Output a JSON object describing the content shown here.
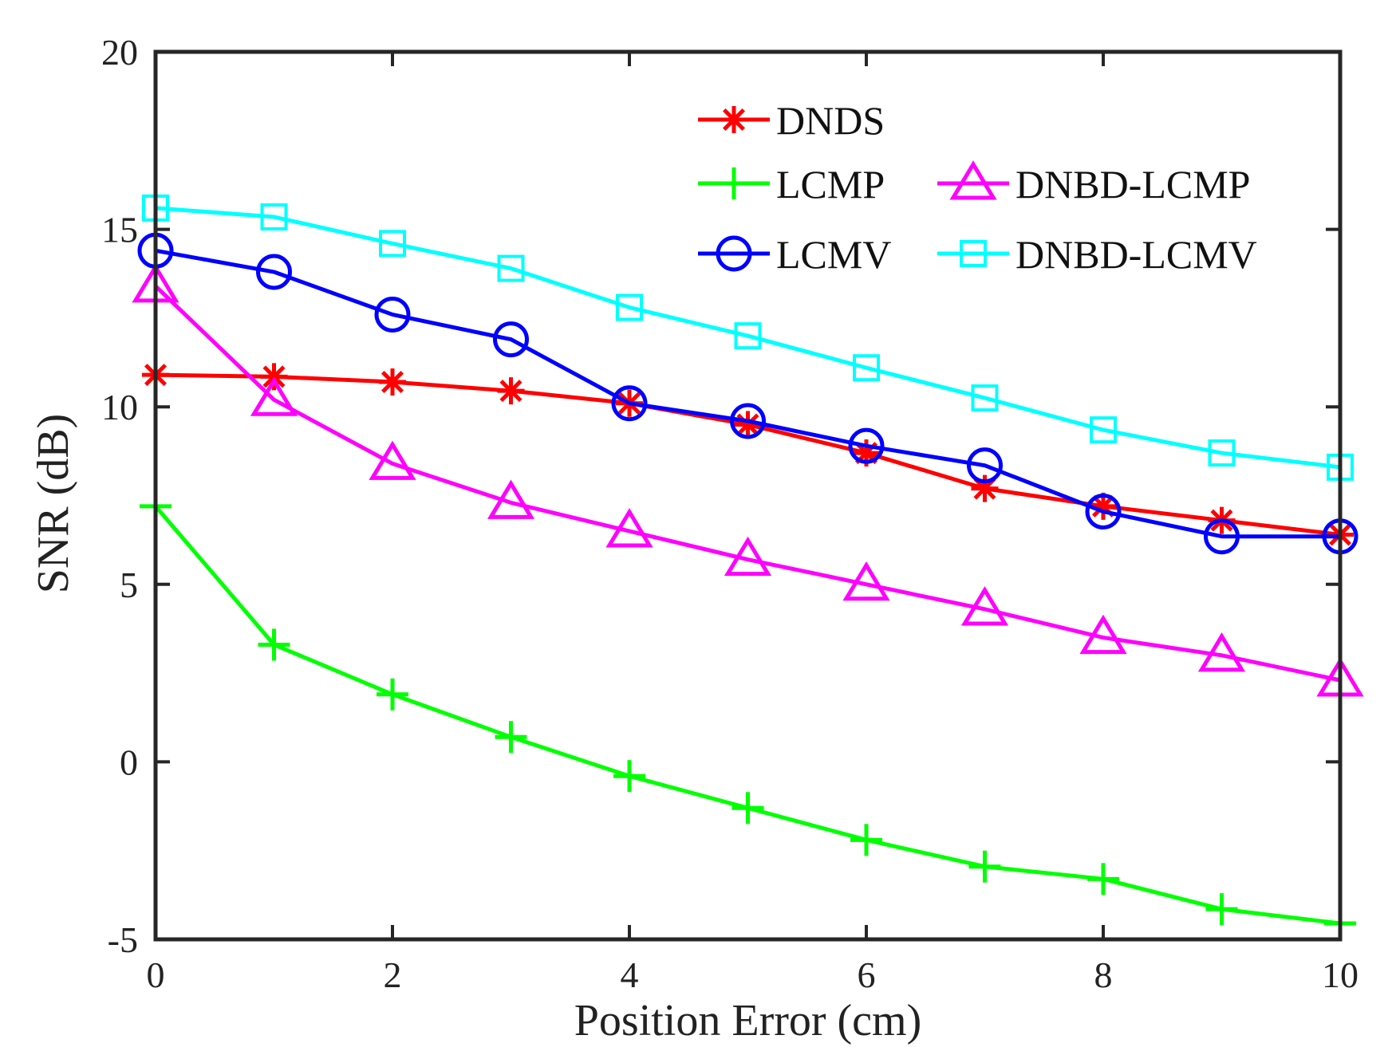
{
  "chart_data": {
    "type": "line",
    "title": "",
    "xlabel": "Position Error (cm)",
    "ylabel": "SNR (dB)",
    "xlim": [
      0,
      10
    ],
    "ylim": [
      -5,
      20
    ],
    "xticks": [
      0,
      2,
      4,
      6,
      8,
      10
    ],
    "yticks": [
      -5,
      0,
      5,
      10,
      15,
      20
    ],
    "xtick_labels": [
      "0",
      "2",
      "4",
      "6",
      "8",
      "10"
    ],
    "ytick_labels": [
      "-5",
      "0",
      "5",
      "10",
      "15",
      "20"
    ],
    "grid": false,
    "legend_position": "top-right",
    "x": [
      0,
      1,
      2,
      3,
      4,
      5,
      6,
      7,
      8,
      9,
      10
    ],
    "series": [
      {
        "name": "DNDS",
        "color": "#ff0000",
        "marker": "asterisk",
        "values": [
          10.9,
          10.85,
          10.7,
          10.45,
          10.1,
          9.5,
          8.7,
          7.7,
          7.2,
          6.8,
          6.4
        ]
      },
      {
        "name": "LCMP",
        "color": "#00ff00",
        "marker": "plus",
        "values": [
          7.2,
          3.3,
          1.9,
          0.7,
          -0.4,
          -1.3,
          -2.2,
          -2.95,
          -3.3,
          -4.15,
          -4.55
        ]
      },
      {
        "name": "DNBD-LCMP",
        "color": "#ff00ff",
        "marker": "triangle",
        "values": [
          13.4,
          10.2,
          8.4,
          7.3,
          6.5,
          5.7,
          5.0,
          4.3,
          3.5,
          3.0,
          2.3
        ]
      },
      {
        "name": "LCMV",
        "color": "#0000ff",
        "marker": "circle",
        "values": [
          14.4,
          13.8,
          12.6,
          11.9,
          10.1,
          9.6,
          8.9,
          8.35,
          7.05,
          6.35,
          6.35
        ]
      },
      {
        "name": "DNBD-LCMV",
        "color": "#00ffff",
        "marker": "square",
        "values": [
          15.6,
          15.35,
          14.6,
          13.9,
          12.8,
          12.0,
          11.1,
          10.25,
          9.35,
          8.7,
          8.3
        ]
      }
    ]
  }
}
